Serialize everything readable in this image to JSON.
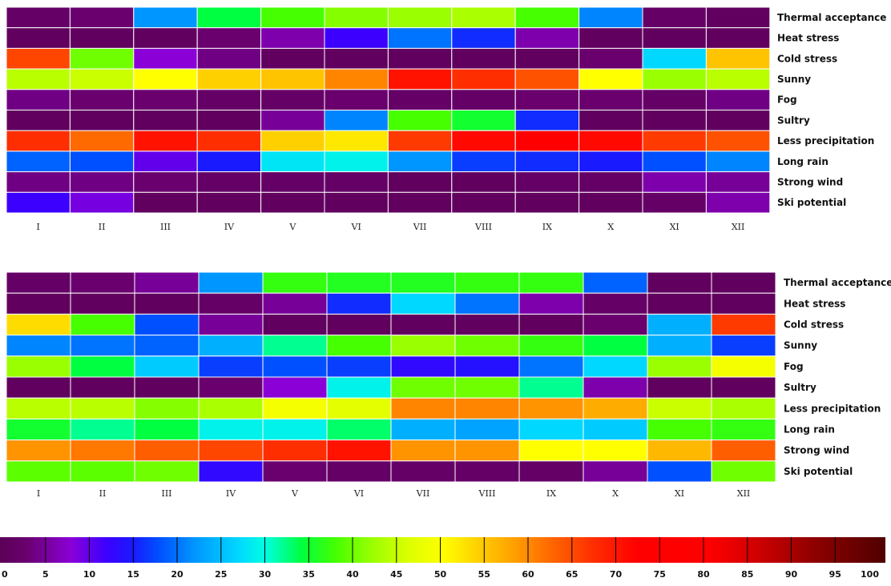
{
  "chart_data": [
    {
      "type": "heatmap",
      "x": [
        "I",
        "II",
        "III",
        "IV",
        "V",
        "VI",
        "VII",
        "VIII",
        "IX",
        "X",
        "XI",
        "XII"
      ],
      "y": [
        "Thermal acceptance",
        "Heat stress",
        "Cold stress",
        "Sunny",
        "Fog",
        "Sultry",
        "Less precipitation",
        "Long rain",
        "Strong wind",
        "Ski potential"
      ],
      "values": [
        [
          2,
          3,
          22,
          34,
          38,
          41,
          42,
          43,
          38,
          21,
          2,
          1
        ],
        [
          1,
          1,
          1,
          3,
          6,
          12,
          20,
          16,
          6,
          1,
          1,
          1
        ],
        [
          65,
          40,
          8,
          4,
          1,
          1,
          1,
          1,
          1,
          3,
          27,
          55
        ],
        [
          44,
          45,
          50,
          54,
          55,
          60,
          70,
          67,
          64,
          50,
          42,
          44
        ],
        [
          4,
          3,
          3,
          2,
          2,
          3,
          2,
          2,
          3,
          3,
          2,
          4
        ],
        [
          1,
          1,
          1,
          1,
          5,
          21,
          38,
          35,
          16,
          1,
          1,
          1
        ],
        [
          67,
          62,
          70,
          67,
          54,
          52,
          66,
          71,
          72,
          71,
          66,
          64
        ],
        [
          19,
          18,
          10,
          15,
          28,
          29,
          22,
          17,
          16,
          15,
          18,
          21
        ],
        [
          4,
          4,
          3,
          2,
          2,
          2,
          1,
          1,
          2,
          2,
          6,
          5
        ],
        [
          12,
          9,
          1,
          1,
          1,
          1,
          1,
          1,
          1,
          1,
          2,
          6
        ]
      ]
    },
    {
      "type": "heatmap",
      "x": [
        "I",
        "II",
        "III",
        "IV",
        "V",
        "VI",
        "VII",
        "VIII",
        "IX",
        "X",
        "XI",
        "XII"
      ],
      "y": [
        "Thermal acceptance",
        "Heat stress",
        "Cold stress",
        "Sunny",
        "Fog",
        "Sultry",
        "Less precipitation",
        "Long rain",
        "Strong wind",
        "Ski potential"
      ],
      "values": [
        [
          2,
          3,
          5,
          22,
          37,
          36,
          36,
          37,
          37,
          19,
          1,
          1
        ],
        [
          1,
          1,
          1,
          2,
          5,
          16,
          27,
          20,
          6,
          2,
          1,
          1
        ],
        [
          53,
          38,
          18,
          5,
          1,
          1,
          1,
          1,
          1,
          3,
          24,
          66
        ],
        [
          21,
          20,
          19,
          24,
          32,
          38,
          42,
          40,
          37,
          34,
          24,
          17
        ],
        [
          42,
          34,
          26,
          17,
          18,
          17,
          13,
          14,
          20,
          27,
          42,
          49
        ],
        [
          1,
          1,
          1,
          3,
          8,
          29,
          40,
          40,
          32,
          6,
          1,
          1
        ],
        [
          44,
          44,
          41,
          43,
          49,
          47,
          60,
          60,
          59,
          57,
          45,
          43
        ],
        [
          35,
          32,
          34,
          29,
          29,
          33,
          24,
          23,
          27,
          26,
          38,
          37
        ],
        [
          59,
          61,
          63,
          65,
          67,
          70,
          59,
          59,
          50,
          50,
          56,
          63
        ],
        [
          39,
          39,
          40,
          13,
          3,
          2,
          2,
          2,
          2,
          5,
          18,
          40
        ]
      ]
    }
  ],
  "colorbar": {
    "min": 0,
    "max": 100,
    "ticks": [
      0,
      5,
      10,
      15,
      20,
      25,
      30,
      35,
      40,
      45,
      50,
      55,
      60,
      65,
      70,
      75,
      80,
      85,
      90,
      95,
      100
    ],
    "tick_labels": [
      "0",
      "5",
      "10",
      "15",
      "20",
      "25",
      "30",
      "35",
      "40",
      "45",
      "50",
      "55",
      "60",
      "65",
      "70",
      "75",
      "80",
      "85",
      "90",
      "95",
      "100"
    ],
    "colors": [
      "#5c0058",
      "#7a00d8",
      "#1a00ff",
      "#005aff",
      "#00b4ff",
      "#00ffe6",
      "#00ff2e",
      "#6eff00",
      "#d8ff00",
      "#ffff00",
      "#ffb400",
      "#ff6e00",
      "#ff2800",
      "#ff0000",
      "#ff0000",
      "#ff0000",
      "#e80000",
      "#b00000",
      "#7c0000",
      "#500000"
    ]
  }
}
